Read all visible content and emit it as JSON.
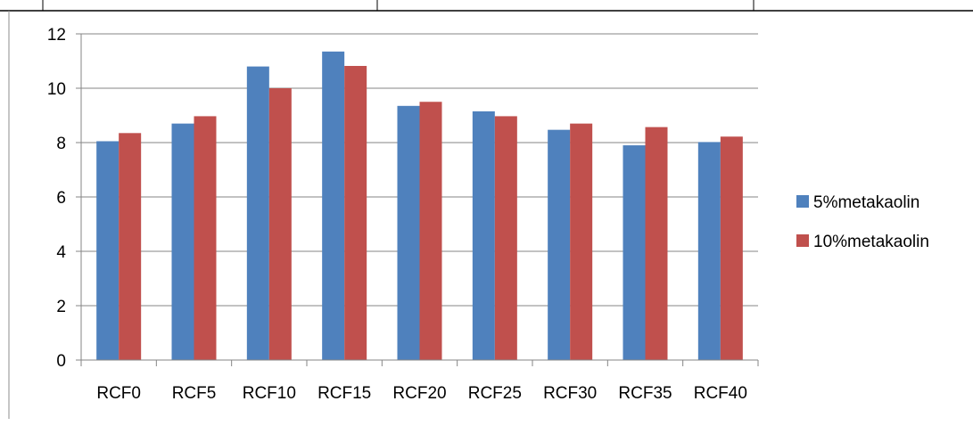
{
  "chart_data": {
    "type": "bar",
    "title": "",
    "xlabel": "",
    "ylabel": "",
    "categories": [
      "RCF0",
      "RCF5",
      "RCF10",
      "RCF15",
      "RCF20",
      "RCF25",
      "RCF30",
      "RCF35",
      "RCF40"
    ],
    "series": [
      {
        "name": "5%metakaolin",
        "color": "#4F81BD",
        "values": [
          8.05,
          8.7,
          10.8,
          11.35,
          9.35,
          9.15,
          8.47,
          7.9,
          8.02
        ]
      },
      {
        "name": "10%metakaolin",
        "color": "#C0504D",
        "values": [
          8.35,
          8.97,
          10.0,
          10.82,
          9.5,
          8.97,
          8.7,
          8.57,
          8.22
        ]
      }
    ],
    "ylim": [
      0,
      12
    ],
    "yticks": [
      0,
      2,
      4,
      6,
      8,
      10,
      12
    ],
    "grid": true,
    "legend": "right"
  }
}
